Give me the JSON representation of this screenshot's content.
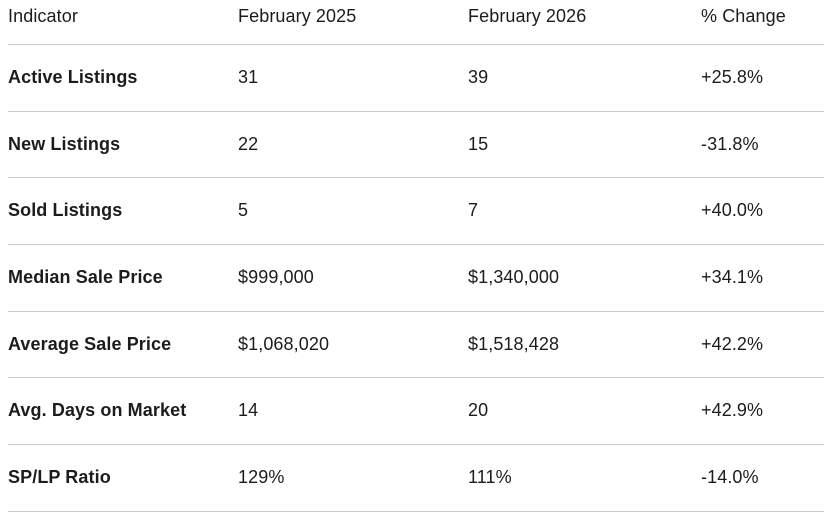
{
  "chart_data": {
    "type": "table",
    "title": "",
    "columns": [
      "Indicator",
      "February 2025",
      "February 2026",
      "% Change"
    ],
    "rows": [
      [
        "Active Listings",
        "31",
        "39",
        "+25.8%"
      ],
      [
        "New Listings",
        "22",
        "15",
        "-31.8%"
      ],
      [
        "Sold Listings",
        "5",
        "7",
        "+40.0%"
      ],
      [
        "Median Sale Price",
        "$999,000",
        "$1,340,000",
        "+34.1%"
      ],
      [
        "Average Sale Price",
        "$1,068,020",
        "$1,518,428",
        "+42.2%"
      ],
      [
        "Avg. Days on Market",
        "14",
        "20",
        "+42.9%"
      ],
      [
        "SP/LP Ratio",
        "129%",
        "111%",
        "-14.0%"
      ]
    ],
    "layout": {
      "grid": "horizontal-row-dividers-only",
      "column_alignment": [
        "left",
        "left",
        "left",
        "left"
      ],
      "row_label_weight": "bold",
      "header_weight": "regular"
    }
  },
  "colors": {
    "text": "#1c1c1c",
    "divider": "#c9c9c9",
    "background": "#ffffff"
  }
}
